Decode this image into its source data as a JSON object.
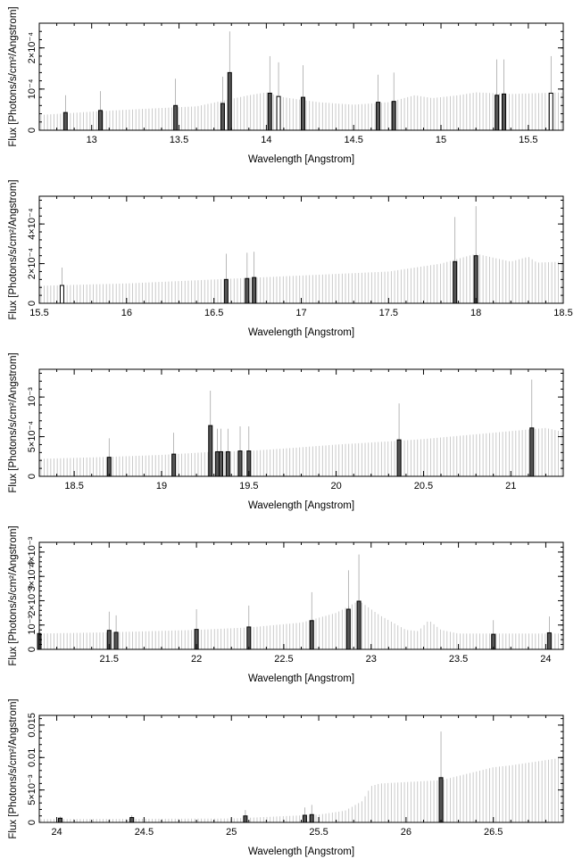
{
  "chart_data": [
    {
      "type": "bar",
      "xlabel": "Wavelength [Angstrom]",
      "ylabel": "Flux [Photons/s/cm²/Angstrom]",
      "xlim": [
        12.7,
        15.7
      ],
      "ylim": [
        0,
        0.00026
      ],
      "xticks": [
        13,
        13.5,
        14,
        14.5,
        15,
        15.5
      ],
      "xtick_labels": [
        "13",
        "13.5",
        "14",
        "14.5",
        "15",
        "15.5"
      ],
      "yticks": [
        0,
        0.0001,
        0.0002
      ],
      "ytick_labels": [
        "0",
        "10⁻⁴",
        "2×10⁻⁴"
      ],
      "continuum": [
        [
          12.7,
          3.7e-05
        ],
        [
          13.0,
          4.5e-05
        ],
        [
          13.3,
          5.2e-05
        ],
        [
          13.6,
          5.8e-05
        ],
        [
          13.9,
          8.5e-05
        ],
        [
          14.0,
          9.2e-05
        ],
        [
          14.1,
          8e-05
        ],
        [
          14.3,
          6.8e-05
        ],
        [
          14.5,
          6.2e-05
        ],
        [
          14.7,
          6.8e-05
        ],
        [
          14.85,
          8.5e-05
        ],
        [
          14.95,
          7.8e-05
        ],
        [
          15.1,
          8.5e-05
        ],
        [
          15.2,
          9.2e-05
        ],
        [
          15.4,
          8.8e-05
        ],
        [
          15.7,
          9.2e-05
        ]
      ],
      "lines": [
        {
          "x": 12.85,
          "y": 4.3e-05,
          "err": 8.5e-05,
          "hollow": false
        },
        {
          "x": 13.05,
          "y": 4.8e-05,
          "err": 9.5e-05,
          "hollow": false
        },
        {
          "x": 13.48,
          "y": 6e-05,
          "err": 0.000125,
          "hollow": false
        },
        {
          "x": 13.75,
          "y": 6.5e-05,
          "err": 0.00013,
          "hollow": false
        },
        {
          "x": 13.79,
          "y": 0.00014,
          "err": 0.00024,
          "hollow": false
        },
        {
          "x": 14.02,
          "y": 9e-05,
          "err": 0.00018,
          "hollow": false
        },
        {
          "x": 14.07,
          "y": 8.2e-05,
          "err": 0.000165,
          "hollow": true
        },
        {
          "x": 14.21,
          "y": 8e-05,
          "err": 0.000158,
          "hollow": false
        },
        {
          "x": 14.64,
          "y": 6.8e-05,
          "err": 0.000135,
          "hollow": false
        },
        {
          "x": 14.73,
          "y": 7e-05,
          "err": 0.00014,
          "hollow": false
        },
        {
          "x": 15.32,
          "y": 8.5e-05,
          "err": 0.000172,
          "hollow": false
        },
        {
          "x": 15.36,
          "y": 8.8e-05,
          "err": 0.000172,
          "hollow": false
        },
        {
          "x": 15.63,
          "y": 9e-05,
          "err": 0.00018,
          "hollow": true
        }
      ]
    },
    {
      "type": "bar",
      "xlabel": "Wavelength [Angstrom]",
      "ylabel": "Flux [Photons/s/cm²/Angstrom]",
      "xlim": [
        15.5,
        18.5
      ],
      "ylim": [
        0,
        0.00054
      ],
      "xticks": [
        15.5,
        16,
        16.5,
        17,
        17.5,
        18,
        18.5
      ],
      "xtick_labels": [
        "15.5",
        "16",
        "16.5",
        "17",
        "17.5",
        "18",
        "18.5"
      ],
      "yticks": [
        0,
        0.0002,
        0.0004
      ],
      "ytick_labels": [
        "0",
        "2×10⁻⁴",
        "4×10⁻⁴"
      ],
      "continuum": [
        [
          15.5,
          8.8e-05
        ],
        [
          16.0,
          0.0001
        ],
        [
          16.5,
          0.00012
        ],
        [
          17.0,
          0.00014
        ],
        [
          17.5,
          0.00016
        ],
        [
          17.8,
          0.0002
        ],
        [
          18.0,
          0.00025
        ],
        [
          18.05,
          0.00024
        ],
        [
          18.2,
          0.00021
        ],
        [
          18.3,
          0.000235
        ],
        [
          18.35,
          0.000205
        ],
        [
          18.5,
          0.00021
        ]
      ],
      "lines": [
        {
          "x": 15.63,
          "y": 9e-05,
          "err": 0.00018,
          "hollow": true
        },
        {
          "x": 16.57,
          "y": 0.00012,
          "err": 0.00025,
          "hollow": false
        },
        {
          "x": 16.69,
          "y": 0.000125,
          "err": 0.000255,
          "hollow": false
        },
        {
          "x": 16.73,
          "y": 0.00013,
          "err": 0.00026,
          "hollow": false
        },
        {
          "x": 17.88,
          "y": 0.00021,
          "err": 0.000435,
          "hollow": false
        },
        {
          "x": 18.0,
          "y": 0.00024,
          "err": 0.00049,
          "hollow": false
        }
      ]
    },
    {
      "type": "bar",
      "xlabel": "Wavelength [Angstrom]",
      "ylabel": "Flux [Photons/s/cm²/Angstrom]",
      "xlim": [
        18.3,
        21.3
      ],
      "ylim": [
        0,
        0.00135
      ],
      "xticks": [
        18.5,
        19,
        19.5,
        20,
        20.5,
        21
      ],
      "xtick_labels": [
        "18.5",
        "19",
        "19.5",
        "20",
        "20.5",
        "21"
      ],
      "yticks": [
        0,
        0.0005,
        0.001
      ],
      "ytick_labels": [
        "0",
        "5×10⁻⁴",
        "10⁻³"
      ],
      "continuum": [
        [
          18.3,
          0.00022
        ],
        [
          18.7,
          0.000245
        ],
        [
          19.0,
          0.00027
        ],
        [
          19.3,
          0.00031
        ],
        [
          19.5,
          0.00032
        ],
        [
          19.7,
          0.00035
        ],
        [
          20.0,
          0.0004
        ],
        [
          20.3,
          0.00044
        ],
        [
          20.5,
          0.00047
        ],
        [
          20.8,
          0.00053
        ],
        [
          21.0,
          0.00057
        ],
        [
          21.2,
          0.00061
        ],
        [
          21.3,
          0.00056
        ]
      ],
      "lines": [
        {
          "x": 18.7,
          "y": 0.00024,
          "err": 0.00048,
          "hollow": false
        },
        {
          "x": 19.07,
          "y": 0.00028,
          "err": 0.00055,
          "hollow": false
        },
        {
          "x": 19.28,
          "y": 0.00064,
          "err": 0.00108,
          "hollow": false
        },
        {
          "x": 19.32,
          "y": 0.00031,
          "err": 0.0006,
          "hollow": false
        },
        {
          "x": 19.34,
          "y": 0.00031,
          "err": 0.0006,
          "hollow": false
        },
        {
          "x": 19.38,
          "y": 0.00031,
          "err": 0.0006,
          "hollow": false
        },
        {
          "x": 19.45,
          "y": 0.00032,
          "err": 0.00063,
          "hollow": false
        },
        {
          "x": 19.5,
          "y": 0.00032,
          "err": 0.00063,
          "hollow": false
        },
        {
          "x": 20.36,
          "y": 0.00046,
          "err": 0.00092,
          "hollow": false
        },
        {
          "x": 21.12,
          "y": 0.00061,
          "err": 0.00122,
          "hollow": false
        }
      ]
    },
    {
      "type": "bar",
      "xlabel": "Wavelength [Angstrom]",
      "ylabel": "Flux [Photons/s/cm²/Angstrom]",
      "xlim": [
        21.1,
        24.1
      ],
      "ylim": [
        0,
        0.0044
      ],
      "xticks": [
        21.5,
        22,
        22.5,
        23,
        23.5,
        24
      ],
      "xtick_labels": [
        "21.5",
        "22",
        "22.5",
        "23",
        "23.5",
        "24"
      ],
      "yticks": [
        0,
        0.001,
        0.002,
        0.003,
        0.004
      ],
      "ytick_labels": [
        "0",
        "10⁻³",
        "2×10⁻³",
        "3×10⁻³",
        "4×10⁻³"
      ],
      "continuum": [
        [
          21.1,
          0.00065
        ],
        [
          21.5,
          0.0007
        ],
        [
          22.0,
          0.0008
        ],
        [
          22.3,
          0.0009
        ],
        [
          22.6,
          0.0011
        ],
        [
          22.8,
          0.0015
        ],
        [
          22.93,
          0.002
        ],
        [
          23.05,
          0.0014
        ],
        [
          23.2,
          0.0008
        ],
        [
          23.27,
          0.00075
        ],
        [
          23.33,
          0.0012
        ],
        [
          23.4,
          0.0008
        ],
        [
          23.5,
          0.00065
        ],
        [
          24.1,
          0.00065
        ]
      ],
      "lines": [
        {
          "x": 21.1,
          "y": 0.00065,
          "err": 0.0013,
          "hollow": false
        },
        {
          "x": 21.5,
          "y": 0.00078,
          "err": 0.00155,
          "hollow": false
        },
        {
          "x": 21.54,
          "y": 0.0007,
          "err": 0.0014,
          "hollow": false
        },
        {
          "x": 22.0,
          "y": 0.00082,
          "err": 0.00165,
          "hollow": false
        },
        {
          "x": 22.3,
          "y": 0.00092,
          "err": 0.0018,
          "hollow": false
        },
        {
          "x": 22.66,
          "y": 0.00118,
          "err": 0.00235,
          "hollow": false
        },
        {
          "x": 22.87,
          "y": 0.00165,
          "err": 0.00325,
          "hollow": false
        },
        {
          "x": 22.93,
          "y": 0.00198,
          "err": 0.0039,
          "hollow": false
        },
        {
          "x": 23.7,
          "y": 0.00062,
          "err": 0.0012,
          "hollow": false
        },
        {
          "x": 24.02,
          "y": 0.00068,
          "err": 0.00135,
          "hollow": false
        }
      ]
    },
    {
      "type": "bar",
      "xlabel": "Wavelength [Angstrom]",
      "ylabel": "Flux [Photons/s/cm²/Angstrom]",
      "xlim": [
        23.9,
        26.9
      ],
      "ylim": [
        0,
        0.0165
      ],
      "xticks": [
        24,
        24.5,
        25,
        25.5,
        26,
        26.5
      ],
      "xtick_labels": [
        "24",
        "24.5",
        "25",
        "25.5",
        "26",
        "26.5"
      ],
      "yticks": [
        0,
        0.005,
        0.01,
        0.015
      ],
      "ytick_labels": [
        "0",
        "5×10⁻³",
        "0.01",
        "0.015"
      ],
      "continuum": [
        [
          23.9,
          0.0005
        ],
        [
          25.0,
          0.0006
        ],
        [
          25.5,
          0.0012
        ],
        [
          25.65,
          0.0018
        ],
        [
          25.75,
          0.0033
        ],
        [
          25.8,
          0.0056
        ],
        [
          25.85,
          0.006
        ],
        [
          26.2,
          0.0065
        ],
        [
          26.5,
          0.0085
        ],
        [
          26.6,
          0.0088
        ],
        [
          26.9,
          0.01
        ]
      ],
      "lines": [
        {
          "x": 24.02,
          "y": 0.00065,
          "err": 0.0009,
          "hollow": false
        },
        {
          "x": 24.43,
          "y": 0.00075,
          "err": 0.0011,
          "hollow": false
        },
        {
          "x": 25.08,
          "y": 0.001,
          "err": 0.0019,
          "hollow": false
        },
        {
          "x": 25.42,
          "y": 0.0011,
          "err": 0.0023,
          "hollow": false
        },
        {
          "x": 25.46,
          "y": 0.0012,
          "err": 0.0027,
          "hollow": false
        },
        {
          "x": 26.2,
          "y": 0.0069,
          "err": 0.014,
          "hollow": false
        }
      ]
    }
  ]
}
